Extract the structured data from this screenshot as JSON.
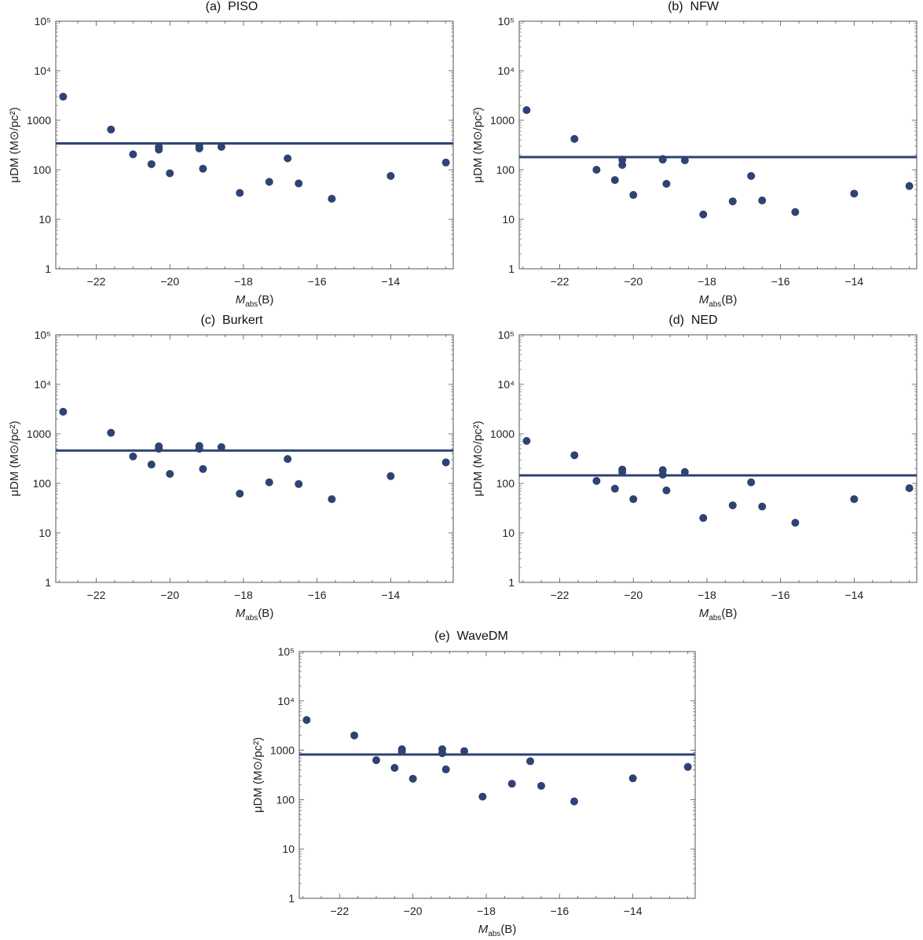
{
  "colors": {
    "series": "#2e4373",
    "axis": "#555555",
    "text": "#222222"
  },
  "chart_data": [
    {
      "type": "scatter",
      "title": "(a)  PISO",
      "xlabel_main": "M",
      "xlabel_sub": "abs",
      "xlabel_tail": "(B)",
      "ylabel": "μDM (M⊙/pc²)",
      "xlim": [
        -23.1,
        -12.3
      ],
      "ylim_log10": [
        0,
        5
      ],
      "x_ticks": [
        "-22",
        "-20",
        "-18",
        "-16",
        "-14"
      ],
      "x_tick_values": [
        -22,
        -20,
        -18,
        -16,
        -14
      ],
      "y_ticks": [
        "1",
        "10",
        "100",
        "1000",
        "10⁴",
        "10⁵"
      ],
      "hline": 340,
      "points": [
        [
          -22.9,
          3000
        ],
        [
          -21.6,
          650
        ],
        [
          -21.0,
          205
        ],
        [
          -20.5,
          130
        ],
        [
          -20.3,
          290
        ],
        [
          -20.3,
          255
        ],
        [
          -20.0,
          85
        ],
        [
          -19.2,
          300
        ],
        [
          -19.2,
          270
        ],
        [
          -19.1,
          105
        ],
        [
          -18.6,
          290
        ],
        [
          -18.1,
          34
        ],
        [
          -17.3,
          57
        ],
        [
          -16.8,
          170
        ],
        [
          -16.5,
          53
        ],
        [
          -15.6,
          26
        ],
        [
          -14.0,
          75
        ],
        [
          -12.5,
          140
        ]
      ]
    },
    {
      "type": "scatter",
      "title": "(b)  NFW",
      "xlabel_main": "M",
      "xlabel_sub": "abs",
      "xlabel_tail": "(B)",
      "ylabel": "μDM (M⊙/pc²)",
      "xlim": [
        -23.1,
        -12.3
      ],
      "ylim_log10": [
        0,
        5
      ],
      "x_ticks": [
        "-22",
        "-20",
        "-18",
        "-16",
        "-14"
      ],
      "x_tick_values": [
        -22,
        -20,
        -18,
        -16,
        -14
      ],
      "y_ticks": [
        "1",
        "10",
        "100",
        "1000",
        "10⁴",
        "10⁵"
      ],
      "hline": 180,
      "points": [
        [
          -22.9,
          1600
        ],
        [
          -21.6,
          420
        ],
        [
          -21.0,
          100
        ],
        [
          -20.5,
          62
        ],
        [
          -20.3,
          160
        ],
        [
          -20.3,
          125
        ],
        [
          -20.0,
          31
        ],
        [
          -19.2,
          165
        ],
        [
          -19.2,
          160
        ],
        [
          -19.1,
          52
        ],
        [
          -18.6,
          155
        ],
        [
          -18.1,
          12.5
        ],
        [
          -17.3,
          23
        ],
        [
          -16.8,
          75
        ],
        [
          -16.5,
          24
        ],
        [
          -15.6,
          14
        ],
        [
          -14.0,
          33
        ],
        [
          -12.5,
          47
        ]
      ]
    },
    {
      "type": "scatter",
      "title": "(c)  Burkert",
      "xlabel_main": "M",
      "xlabel_sub": "abs",
      "xlabel_tail": "(B)",
      "ylabel": "μDM (M⊙/pc²)",
      "xlim": [
        -23.1,
        -12.3
      ],
      "ylim_log10": [
        0,
        5
      ],
      "x_ticks": [
        "-22",
        "-20",
        "-18",
        "-16",
        "-14"
      ],
      "x_tick_values": [
        -22,
        -20,
        -18,
        -16,
        -14
      ],
      "y_ticks": [
        "1",
        "10",
        "100",
        "1000",
        "10⁴",
        "10⁵"
      ],
      "hline": 460,
      "points": [
        [
          -22.9,
          2800
        ],
        [
          -21.6,
          1050
        ],
        [
          -21.0,
          350
        ],
        [
          -20.5,
          240
        ],
        [
          -20.3,
          560
        ],
        [
          -20.3,
          500
        ],
        [
          -20.0,
          155
        ],
        [
          -19.2,
          570
        ],
        [
          -19.2,
          500
        ],
        [
          -19.1,
          195
        ],
        [
          -18.6,
          540
        ],
        [
          -18.1,
          62
        ],
        [
          -17.3,
          105
        ],
        [
          -16.8,
          310
        ],
        [
          -16.5,
          97
        ],
        [
          -15.6,
          48
        ],
        [
          -14.0,
          140
        ],
        [
          -12.5,
          265
        ]
      ]
    },
    {
      "type": "scatter",
      "title": "(d)  NED",
      "xlabel_main": "M",
      "xlabel_sub": "abs",
      "xlabel_tail": "(B)",
      "ylabel": "μDM (M⊙/pc²)",
      "xlim": [
        -23.1,
        -12.3
      ],
      "ylim_log10": [
        0,
        5
      ],
      "x_ticks": [
        "-22",
        "-20",
        "-18",
        "-16",
        "-14"
      ],
      "x_tick_values": [
        -22,
        -20,
        -18,
        -16,
        -14
      ],
      "y_ticks": [
        "1",
        "10",
        "100",
        "1000",
        "10⁴",
        "10⁵"
      ],
      "hline": 145,
      "points": [
        [
          -22.9,
          720
        ],
        [
          -21.6,
          370
        ],
        [
          -21.0,
          112
        ],
        [
          -20.5,
          78
        ],
        [
          -20.3,
          190
        ],
        [
          -20.3,
          170
        ],
        [
          -20.0,
          48
        ],
        [
          -19.2,
          185
        ],
        [
          -19.2,
          150
        ],
        [
          -19.1,
          72
        ],
        [
          -18.6,
          170
        ],
        [
          -18.1,
          20
        ],
        [
          -17.3,
          36
        ],
        [
          -16.8,
          105
        ],
        [
          -16.5,
          34
        ],
        [
          -15.6,
          16
        ],
        [
          -14.0,
          48
        ],
        [
          -12.5,
          80
        ]
      ]
    },
    {
      "type": "scatter",
      "title": "(e)  WaveDM",
      "xlabel_main": "M",
      "xlabel_sub": "abs",
      "xlabel_tail": "(B)",
      "ylabel": "μDM (M⊙/pc²)",
      "xlim": [
        -23.1,
        -12.3
      ],
      "ylim_log10": [
        0,
        5
      ],
      "x_ticks": [
        "-22",
        "-20",
        "-18",
        "-16",
        "-14"
      ],
      "x_tick_values": [
        -22,
        -20,
        -18,
        -16,
        -14
      ],
      "y_ticks": [
        "1",
        "10",
        "100",
        "1000",
        "10⁴",
        "10⁵"
      ],
      "hline": 820,
      "points": [
        [
          -22.9,
          4100
        ],
        [
          -21.6,
          2000
        ],
        [
          -21.0,
          630
        ],
        [
          -20.5,
          440
        ],
        [
          -20.3,
          1050
        ],
        [
          -20.3,
          950
        ],
        [
          -20.0,
          265
        ],
        [
          -19.2,
          1050
        ],
        [
          -19.2,
          870
        ],
        [
          -19.1,
          410
        ],
        [
          -18.6,
          960
        ],
        [
          -18.1,
          115
        ],
        [
          -17.3,
          210
        ],
        [
          -16.8,
          600
        ],
        [
          -16.5,
          190
        ],
        [
          -15.6,
          92
        ],
        [
          -14.0,
          270
        ],
        [
          -12.5,
          460
        ]
      ]
    }
  ]
}
